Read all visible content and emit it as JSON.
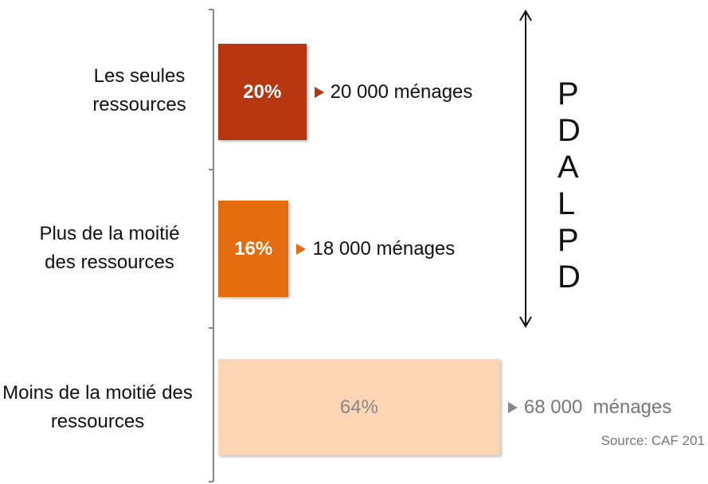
{
  "chart_data": {
    "type": "bar",
    "orientation": "horizontal",
    "categories": [
      "Les seules ressources",
      "Plus de la moitié des ressources",
      "Moins de la moitié des ressources"
    ],
    "values": [
      20,
      16,
      64
    ],
    "value_labels": [
      "20%",
      "16%",
      "64%"
    ],
    "colors": [
      "#b5360f",
      "#e46c0e",
      "#fcd5b4"
    ],
    "annotations": [
      "20 000 ménages",
      "18 000 ménages",
      "68 000  ménages"
    ],
    "side_label": "PDALPD",
    "source": "Source: CAF 201"
  }
}
